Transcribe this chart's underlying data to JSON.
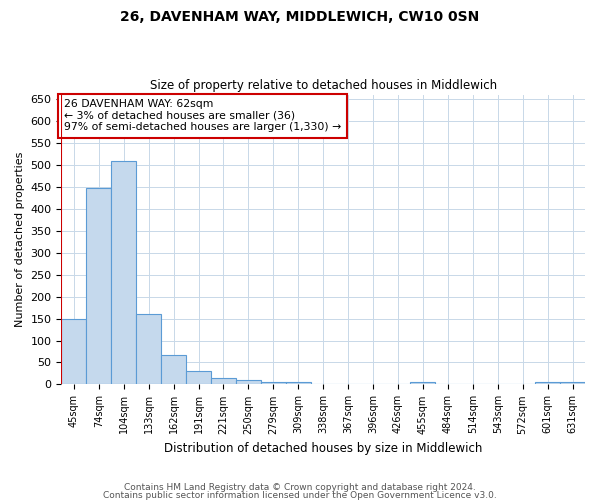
{
  "title": "26, DAVENHAM WAY, MIDDLEWICH, CW10 0SN",
  "subtitle": "Size of property relative to detached houses in Middlewich",
  "xlabel": "Distribution of detached houses by size in Middlewich",
  "ylabel": "Number of detached properties",
  "categories": [
    "45sqm",
    "74sqm",
    "104sqm",
    "133sqm",
    "162sqm",
    "191sqm",
    "221sqm",
    "250sqm",
    "279sqm",
    "309sqm",
    "338sqm",
    "367sqm",
    "396sqm",
    "426sqm",
    "455sqm",
    "484sqm",
    "514sqm",
    "543sqm",
    "572sqm",
    "601sqm",
    "631sqm"
  ],
  "values": [
    148,
    448,
    508,
    160,
    68,
    31,
    14,
    9,
    5,
    5,
    0,
    0,
    0,
    0,
    5,
    0,
    0,
    0,
    0,
    5,
    5
  ],
  "bar_color": "#c5d9ed",
  "bar_edge_color": "#5b9bd5",
  "red_line_color": "#cc0000",
  "annotation_text": "26 DAVENHAM WAY: 62sqm\n← 3% of detached houses are smaller (36)\n97% of semi-detached houses are larger (1,330) →",
  "annotation_box_color": "#ffffff",
  "annotation_box_edge_color": "#cc0000",
  "ylim": [
    0,
    660
  ],
  "yticks": [
    0,
    50,
    100,
    150,
    200,
    250,
    300,
    350,
    400,
    450,
    500,
    550,
    600,
    650
  ],
  "footer_line1": "Contains HM Land Registry data © Crown copyright and database right 2024.",
  "footer_line2": "Contains public sector information licensed under the Open Government Licence v3.0.",
  "background_color": "#ffffff",
  "grid_color": "#c8d8e8"
}
